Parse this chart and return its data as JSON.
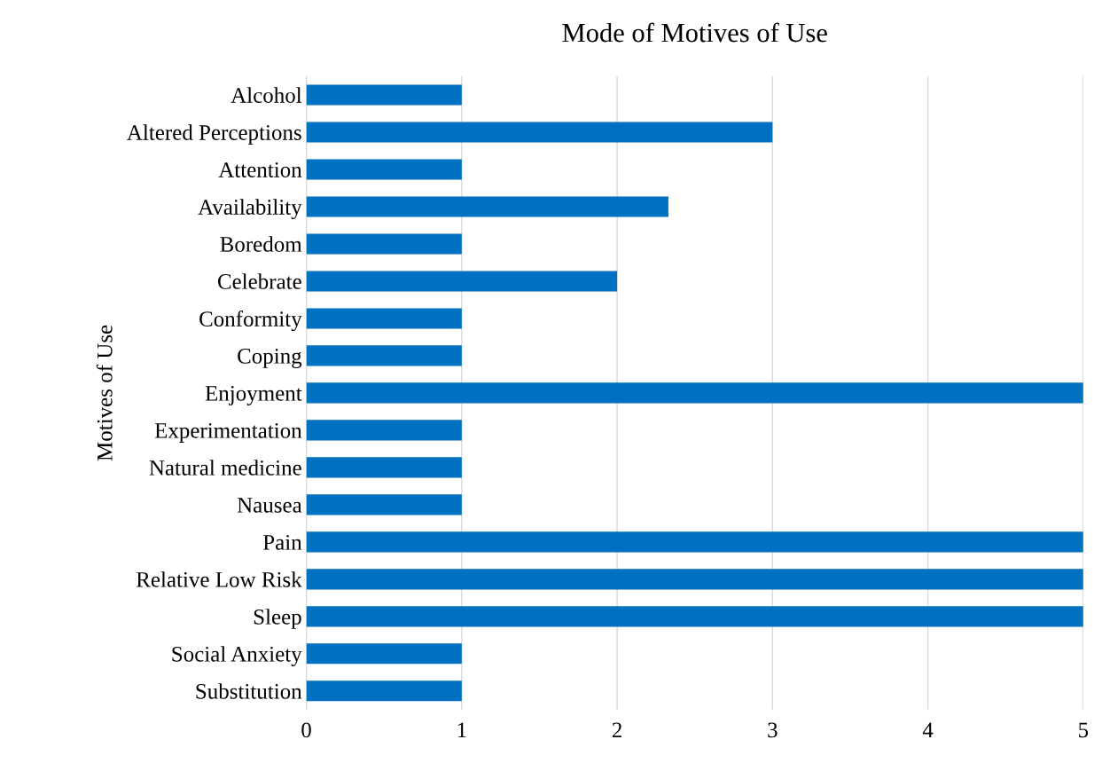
{
  "chart_data": {
    "type": "bar",
    "orientation": "horizontal",
    "title": "Mode of Motives of Use",
    "ylabel": "Motives of Use",
    "categories": [
      "Alcohol",
      "Altered Perceptions",
      "Attention",
      "Availability",
      "Boredom",
      "Celebrate",
      "Conformity",
      "Coping",
      "Enjoyment",
      "Experimentation",
      "Natural medicine",
      "Nausea",
      "Pain",
      "Relative Low Risk",
      "Sleep",
      "Social Anxiety",
      "Substitution"
    ],
    "values": [
      1,
      3,
      1,
      2.33,
      1,
      2,
      1,
      1,
      5,
      1,
      1,
      1,
      5,
      5,
      5,
      1,
      1
    ],
    "color": "#0070c0",
    "xlim": [
      0,
      5
    ],
    "xticks": [
      0,
      1,
      2,
      3,
      4,
      5
    ],
    "grid": "x",
    "legend": false
  }
}
